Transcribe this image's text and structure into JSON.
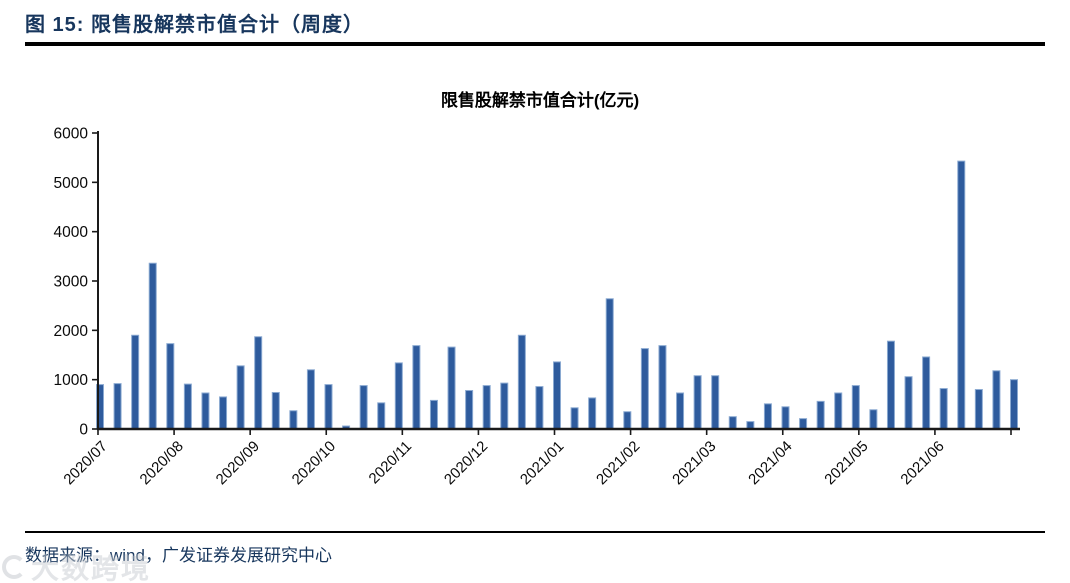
{
  "header": {
    "title": "图 15:  限售股解禁市值合计（周度）"
  },
  "footer": {
    "source": "数据来源：wind，广发证券发展研究中心"
  },
  "watermark": {
    "text": "大数跨境"
  },
  "colors": {
    "header_text": "#17365D",
    "bar_fill": "#2E5B9D",
    "bar_border": "#8AA9D1",
    "axis": "#1a1a1a",
    "tick_label": "#0a0a0a"
  },
  "chart_data": {
    "type": "bar",
    "title": "限售股解禁市值合计(亿元)",
    "xlabel": "",
    "ylabel": "",
    "ylim": [
      0,
      6000
    ],
    "y_ticks": [
      0,
      1000,
      2000,
      3000,
      4000,
      5000,
      6000
    ],
    "grid": false,
    "legend_position": "none",
    "x_tick_labels": [
      "2020/07",
      "2020/08",
      "2020/09",
      "2020/10",
      "2020/11",
      "2020/12",
      "2021/01",
      "2021/02",
      "2021/03",
      "2021/04",
      "2021/05",
      "2021/06"
    ],
    "series_name": "限售股解禁市值合计(亿元)",
    "values": [
      900,
      920,
      1900,
      3360,
      1730,
      910,
      730,
      650,
      1280,
      1870,
      740,
      370,
      1200,
      900,
      60,
      880,
      530,
      1340,
      1690,
      580,
      1660,
      780,
      880,
      930,
      1900,
      860,
      1360,
      430,
      630,
      2640,
      350,
      1630,
      1690,
      730,
      1080,
      1080,
      250,
      150,
      510,
      450,
      210,
      560,
      730,
      880,
      390,
      1780,
      1060,
      1460,
      820,
      5430,
      800,
      1180,
      1000
    ]
  }
}
